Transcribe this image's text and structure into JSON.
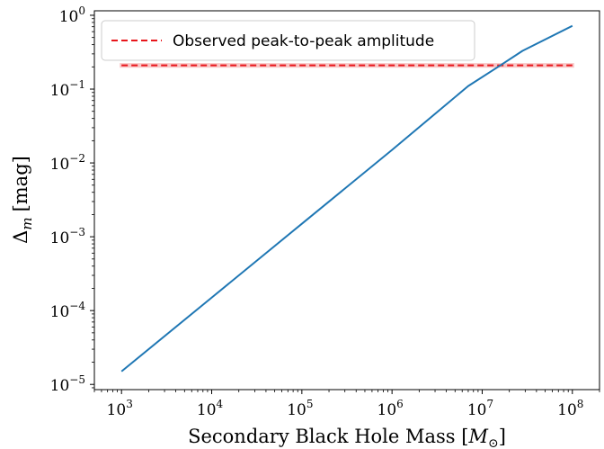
{
  "chart_data": {
    "type": "line",
    "xlabel": "Secondary Black Hole Mass [M⊙]",
    "xlabel_text": "Secondary Black Hole Mass [",
    "xlabel_symbol": "M",
    "xlabel_sub": "⊙",
    "xlabel_close": "]",
    "ylabel_base": "Δ",
    "ylabel_sub": "m",
    "ylabel_unit": "[mag]",
    "xscale": "log",
    "yscale": "log",
    "xlim": [
      500,
      200000000
    ],
    "ylim": [
      8.5e-06,
      1.15
    ],
    "grid": false,
    "legend_position": "top-left",
    "x_ticks": [
      {
        "base": "10",
        "exp": "3",
        "value": 1000
      },
      {
        "base": "10",
        "exp": "4",
        "value": 10000
      },
      {
        "base": "10",
        "exp": "5",
        "value": 100000
      },
      {
        "base": "10",
        "exp": "6",
        "value": 1000000
      },
      {
        "base": "10",
        "exp": "7",
        "value": 10000000
      },
      {
        "base": "10",
        "exp": "8",
        "value": 100000000
      }
    ],
    "y_ticks": [
      {
        "base": "10",
        "exp": "−5",
        "value": 1e-05
      },
      {
        "base": "10",
        "exp": "−4",
        "value": 0.0001
      },
      {
        "base": "10",
        "exp": "−3",
        "value": 0.001
      },
      {
        "base": "10",
        "exp": "−2",
        "value": 0.01
      },
      {
        "base": "10",
        "exp": "−1",
        "value": 0.1
      },
      {
        "base": "10",
        "exp": "0",
        "value": 1
      }
    ],
    "series": [
      {
        "color": "#1f77b4",
        "x": [
          1000,
          10000,
          100000,
          1000000,
          7000000,
          15000000,
          28000000,
          100000000
        ],
        "y": [
          1.5e-05,
          0.00015,
          0.0015,
          0.015,
          0.11,
          0.2,
          0.33,
          0.72
        ]
      }
    ],
    "reference_line": {
      "name": "Observed peak-to-peak amplitude",
      "value": 0.21,
      "band": [
        0.195,
        0.225
      ],
      "color": "#e8161b",
      "band_color": "#f6b3b3",
      "style": "dashed"
    }
  }
}
